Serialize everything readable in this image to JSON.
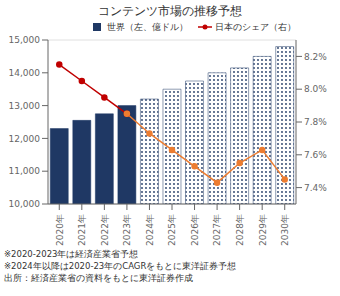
{
  "chart_data": {
    "type": "bar",
    "title": "コンテンツ市場の推移予想",
    "categories": [
      "2020年",
      "2021年",
      "2022年",
      "2023年",
      "2024年",
      "2025年",
      "2026年",
      "2027年",
      "2028年",
      "2029年",
      "2030年"
    ],
    "series": [
      {
        "name": "世界（左、億ドル）",
        "type": "bar",
        "color": "#1f3864",
        "values": [
          12300,
          12550,
          12750,
          13000,
          null,
          null,
          null,
          null,
          null,
          null,
          null
        ]
      },
      {
        "type": "bar",
        "color": "#1f3864",
        "values": [
          null,
          null,
          null,
          null,
          13200,
          13500,
          13750,
          14000,
          14150,
          14500,
          14800
        ]
      },
      {
        "name": "日本のシェア（右）",
        "type": "line",
        "axis": "y2",
        "color": "#c00000",
        "marker": "circle",
        "values": [
          8.15,
          8.05,
          7.95,
          7.85,
          null,
          null,
          null,
          null,
          null,
          null,
          null
        ]
      },
      {
        "type": "line",
        "axis": "y2",
        "color": "#ed7d31",
        "marker": "circle",
        "values": [
          null,
          null,
          null,
          7.85,
          7.73,
          7.63,
          7.53,
          7.43,
          7.55,
          7.63,
          7.45
        ]
      }
    ],
    "ylim": [
      10000,
      15000
    ],
    "yticks": [
      {
        "value": 10000,
        "label": "10,000"
      },
      {
        "value": 11000,
        "label": "11,000"
      },
      {
        "value": 12000,
        "label": "12,000"
      },
      {
        "value": 13000,
        "label": "13,000"
      },
      {
        "value": 14000,
        "label": "14,000"
      },
      {
        "value": 15000,
        "label": "15,000"
      }
    ],
    "y2lim": [
      7.3,
      8.3
    ],
    "y2ticks": [
      {
        "value": 7.4,
        "label": "7.4%"
      },
      {
        "value": 7.6,
        "label": "7.6%"
      },
      {
        "value": 7.8,
        "label": "7.8%"
      },
      {
        "value": 8.0,
        "label": "8.0%"
      },
      {
        "value": 8.2,
        "label": "8.2%"
      }
    ],
    "grid": true,
    "legend": "upper right",
    "annotations": [
      "※2020-2023年は経済産業省予想",
      "※2024年以降は2020-23年のCAGRをもとに東洋証券予想",
      "出所：経済産業省の資料をもとに東洋証券作成"
    ]
  }
}
